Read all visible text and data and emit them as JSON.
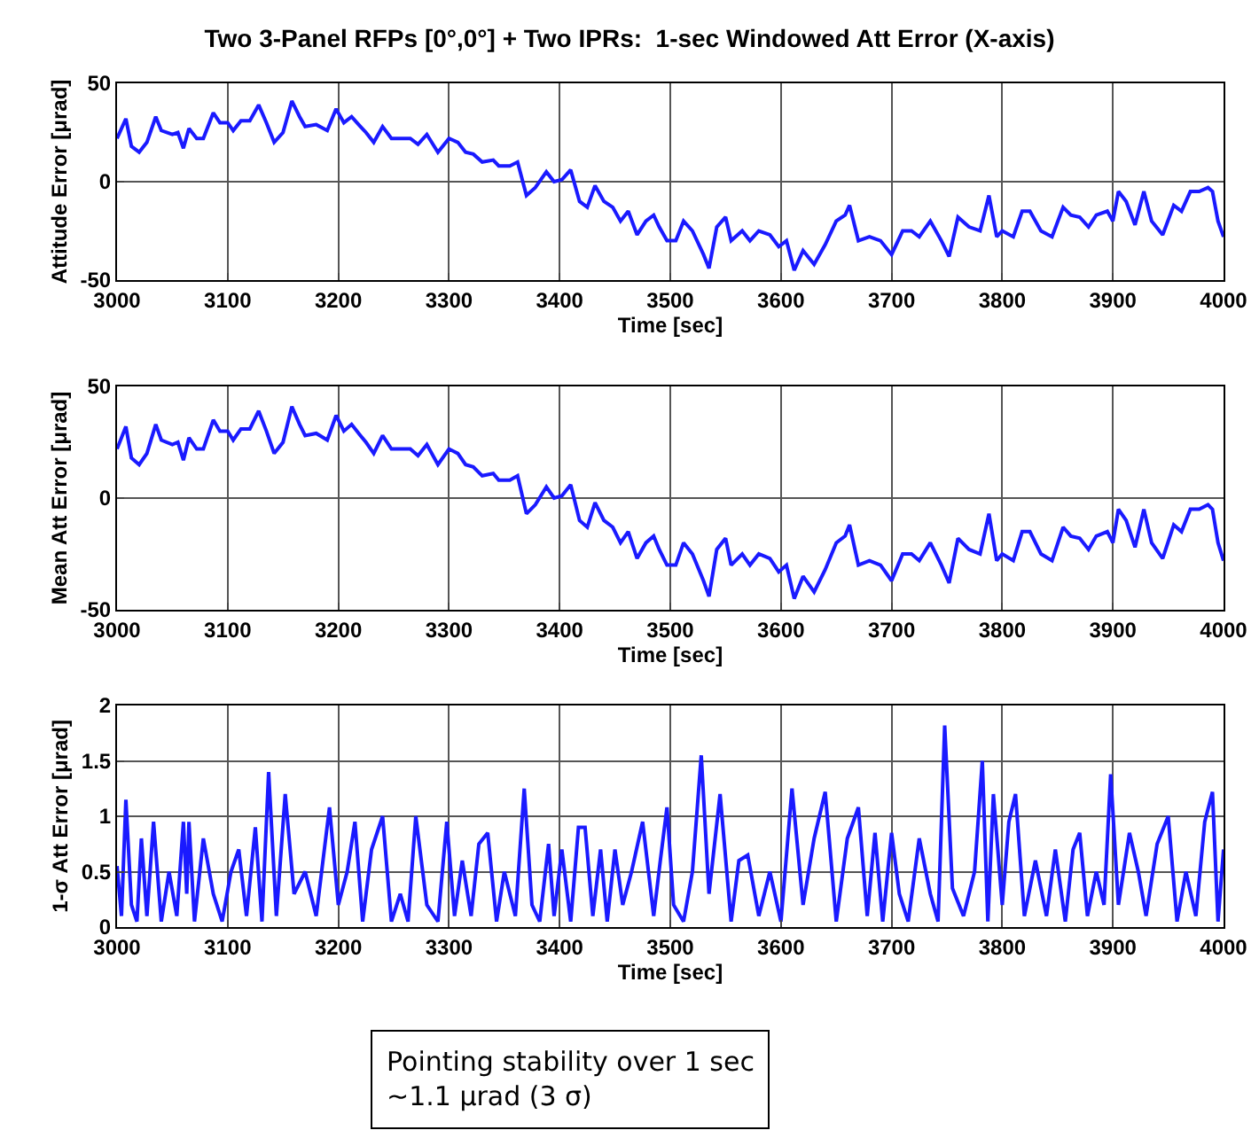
{
  "chart_data": [
    {
      "type": "line",
      "title": "Two 3-Panel RFPs [0°,0°] + Two IPRs:  1-sec Windowed Att Error (X-axis)",
      "xlabel": "Time [sec]",
      "ylabel": "Attitude Error [μrad]",
      "xlim": [
        3000,
        4000
      ],
      "ylim": [
        -50,
        50
      ],
      "xticks": [
        3000,
        3100,
        3200,
        3300,
        3400,
        3500,
        3600,
        3700,
        3800,
        3900,
        4000
      ],
      "yticks": [
        -50,
        0,
        50
      ],
      "grid": true,
      "x": [
        3000,
        3008,
        3013,
        3020,
        3027,
        3035,
        3040,
        3050,
        3055,
        3060,
        3065,
        3072,
        3078,
        3087,
        3093,
        3100,
        3105,
        3112,
        3120,
        3128,
        3135,
        3142,
        3150,
        3158,
        3165,
        3170,
        3180,
        3190,
        3198,
        3205,
        3212,
        3220,
        3225,
        3232,
        3240,
        3248,
        3255,
        3265,
        3272,
        3280,
        3290,
        3300,
        3308,
        3315,
        3322,
        3330,
        3340,
        3345,
        3355,
        3362,
        3370,
        3378,
        3388,
        3395,
        3402,
        3410,
        3418,
        3425,
        3432,
        3440,
        3448,
        3455,
        3462,
        3470,
        3478,
        3485,
        3490,
        3497,
        3505,
        3512,
        3520,
        3530,
        3535,
        3542,
        3550,
        3555,
        3565,
        3572,
        3580,
        3590,
        3598,
        3605,
        3612,
        3620,
        3630,
        3640,
        3650,
        3658,
        3662,
        3670,
        3680,
        3690,
        3700,
        3710,
        3718,
        3725,
        3735,
        3745,
        3752,
        3760,
        3770,
        3780,
        3788,
        3795,
        3800,
        3810,
        3818,
        3825,
        3835,
        3845,
        3855,
        3862,
        3870,
        3878,
        3885,
        3895,
        3900,
        3905,
        3912,
        3920,
        3928,
        3935,
        3945,
        3955,
        3962,
        3970,
        3978,
        3986,
        3990,
        3995,
        4000
      ],
      "series": [
        {
          "color": "#1a1aff",
          "values": [
            22,
            32,
            18,
            15,
            20,
            33,
            26,
            24,
            25,
            17,
            27,
            22,
            22,
            35,
            30,
            30,
            26,
            31,
            31,
            39,
            30,
            20,
            25,
            41,
            33,
            28,
            29,
            26,
            37,
            30,
            33,
            28,
            25,
            20,
            28,
            22,
            22,
            22,
            19,
            24,
            15,
            22,
            20,
            15,
            14,
            10,
            11,
            8,
            8,
            10,
            -7,
            -3,
            5,
            0,
            1,
            6,
            -10,
            -13,
            -2,
            -10,
            -13,
            -20,
            -15,
            -27,
            -20,
            -17,
            -23,
            -30,
            -30,
            -20,
            -25,
            -37,
            -44,
            -23,
            -18,
            -30,
            -25,
            -30,
            -25,
            -27,
            -33,
            -30,
            -45,
            -35,
            -42,
            -32,
            -20,
            -17,
            -12,
            -30,
            -28,
            -30,
            -37,
            -25,
            -25,
            -28,
            -20,
            -30,
            -38,
            -18,
            -23,
            -25,
            -7,
            -28,
            -25,
            -28,
            -15,
            -15,
            -25,
            -28,
            -13,
            -17,
            -18,
            -23,
            -17,
            -15,
            -20,
            -5,
            -10,
            -22,
            -5,
            -20,
            -27,
            -12,
            -15,
            -5,
            -5,
            -3,
            -5,
            -20,
            -28
          ]
        }
      ]
    },
    {
      "type": "line",
      "xlabel": "Time [sec]",
      "ylabel": "Mean Att Error [μrad]",
      "xlim": [
        3000,
        4000
      ],
      "ylim": [
        -50,
        50
      ],
      "xticks": [
        3000,
        3100,
        3200,
        3300,
        3400,
        3500,
        3600,
        3700,
        3800,
        3900,
        4000
      ],
      "yticks": [
        -50,
        0,
        50
      ],
      "grid": true,
      "x": [
        3000,
        3008,
        3013,
        3020,
        3027,
        3035,
        3040,
        3050,
        3055,
        3060,
        3065,
        3072,
        3078,
        3087,
        3093,
        3100,
        3105,
        3112,
        3120,
        3128,
        3135,
        3142,
        3150,
        3158,
        3165,
        3170,
        3180,
        3190,
        3198,
        3205,
        3212,
        3220,
        3225,
        3232,
        3240,
        3248,
        3255,
        3265,
        3272,
        3280,
        3290,
        3300,
        3308,
        3315,
        3322,
        3330,
        3340,
        3345,
        3355,
        3362,
        3370,
        3378,
        3388,
        3395,
        3402,
        3410,
        3418,
        3425,
        3432,
        3440,
        3448,
        3455,
        3462,
        3470,
        3478,
        3485,
        3490,
        3497,
        3505,
        3512,
        3520,
        3530,
        3535,
        3542,
        3550,
        3555,
        3565,
        3572,
        3580,
        3590,
        3598,
        3605,
        3612,
        3620,
        3630,
        3640,
        3650,
        3658,
        3662,
        3670,
        3680,
        3690,
        3700,
        3710,
        3718,
        3725,
        3735,
        3745,
        3752,
        3760,
        3770,
        3780,
        3788,
        3795,
        3800,
        3810,
        3818,
        3825,
        3835,
        3845,
        3855,
        3862,
        3870,
        3878,
        3885,
        3895,
        3900,
        3905,
        3912,
        3920,
        3928,
        3935,
        3945,
        3955,
        3962,
        3970,
        3978,
        3986,
        3990,
        3995,
        4000
      ],
      "series": [
        {
          "color": "#1a1aff",
          "values": [
            22,
            32,
            18,
            15,
            20,
            33,
            26,
            24,
            25,
            17,
            27,
            22,
            22,
            35,
            30,
            30,
            26,
            31,
            31,
            39,
            30,
            20,
            25,
            41,
            33,
            28,
            29,
            26,
            37,
            30,
            33,
            28,
            25,
            20,
            28,
            22,
            22,
            22,
            19,
            24,
            15,
            22,
            20,
            15,
            14,
            10,
            11,
            8,
            8,
            10,
            -7,
            -3,
            5,
            0,
            1,
            6,
            -10,
            -13,
            -2,
            -10,
            -13,
            -20,
            -15,
            -27,
            -20,
            -17,
            -23,
            -30,
            -30,
            -20,
            -25,
            -37,
            -44,
            -23,
            -18,
            -30,
            -25,
            -30,
            -25,
            -27,
            -33,
            -30,
            -45,
            -35,
            -42,
            -32,
            -20,
            -17,
            -12,
            -30,
            -28,
            -30,
            -37,
            -25,
            -25,
            -28,
            -20,
            -30,
            -38,
            -18,
            -23,
            -25,
            -7,
            -28,
            -25,
            -28,
            -15,
            -15,
            -25,
            -28,
            -13,
            -17,
            -18,
            -23,
            -17,
            -15,
            -20,
            -5,
            -10,
            -22,
            -5,
            -20,
            -27,
            -12,
            -15,
            -5,
            -5,
            -3,
            -5,
            -20,
            -28
          ]
        }
      ]
    },
    {
      "type": "line",
      "xlabel": "Time [sec]",
      "ylabel": "1-σ Att Error [μrad]",
      "xlim": [
        3000,
        4000
      ],
      "ylim": [
        0,
        2
      ],
      "xticks": [
        3000,
        3100,
        3200,
        3300,
        3400,
        3500,
        3600,
        3700,
        3800,
        3900,
        4000
      ],
      "yticks": [
        0,
        0.5,
        1,
        1.5,
        2
      ],
      "grid": true,
      "annotations": [
        "Pointing stability over 1 sec\n~1.1 μrad (3 σ)"
      ],
      "x": [
        3000,
        3004,
        3008,
        3013,
        3018,
        3022,
        3027,
        3033,
        3040,
        3047,
        3054,
        3060,
        3063,
        3065,
        3070,
        3078,
        3087,
        3095,
        3103,
        3110,
        3117,
        3125,
        3131,
        3137,
        3144,
        3152,
        3160,
        3170,
        3180,
        3192,
        3200,
        3208,
        3215,
        3222,
        3230,
        3240,
        3248,
        3256,
        3263,
        3270,
        3280,
        3290,
        3298,
        3305,
        3312,
        3320,
        3327,
        3335,
        3343,
        3350,
        3360,
        3368,
        3375,
        3382,
        3390,
        3395,
        3402,
        3410,
        3417,
        3423,
        3430,
        3437,
        3443,
        3450,
        3457,
        3465,
        3475,
        3485,
        3491,
        3497,
        3503,
        3512,
        3520,
        3528,
        3535,
        3545,
        3555,
        3562,
        3570,
        3580,
        3590,
        3600,
        3610,
        3620,
        3630,
        3640,
        3650,
        3660,
        3670,
        3678,
        3685,
        3692,
        3700,
        3707,
        3715,
        3725,
        3735,
        3742,
        3748,
        3755,
        3765,
        3775,
        3782,
        3787,
        3792,
        3800,
        3806,
        3812,
        3820,
        3830,
        3840,
        3848,
        3857,
        3864,
        3870,
        3877,
        3885,
        3892,
        3898,
        3905,
        3915,
        3923,
        3930,
        3940,
        3950,
        3958,
        3966,
        3975,
        3983,
        3990,
        3995,
        4000
      ],
      "series": [
        {
          "color": "#1a1aff",
          "values": [
            0.55,
            0.1,
            1.15,
            0.2,
            0.05,
            0.8,
            0.1,
            0.95,
            0.05,
            0.5,
            0.1,
            0.95,
            0.3,
            0.95,
            0.05,
            0.8,
            0.3,
            0.05,
            0.5,
            0.7,
            0.1,
            0.9,
            0.05,
            1.4,
            0.1,
            1.2,
            0.3,
            0.5,
            0.1,
            1.08,
            0.2,
            0.5,
            0.95,
            0.05,
            0.7,
            1.0,
            0.05,
            0.3,
            0.05,
            1.0,
            0.2,
            0.05,
            0.95,
            0.1,
            0.6,
            0.1,
            0.75,
            0.85,
            0.05,
            0.5,
            0.1,
            1.25,
            0.2,
            0.05,
            0.75,
            0.1,
            0.7,
            0.05,
            0.9,
            0.9,
            0.1,
            0.7,
            0.05,
            0.7,
            0.2,
            0.5,
            0.95,
            0.1,
            0.6,
            1.08,
            0.2,
            0.05,
            0.5,
            1.55,
            0.3,
            1.2,
            0.05,
            0.6,
            0.65,
            0.1,
            0.5,
            0.05,
            1.25,
            0.2,
            0.8,
            1.22,
            0.05,
            0.8,
            1.08,
            0.1,
            0.85,
            0.05,
            0.85,
            0.3,
            0.05,
            0.8,
            0.3,
            0.05,
            1.82,
            0.35,
            0.1,
            0.5,
            1.5,
            0.05,
            1.2,
            0.2,
            0.95,
            1.2,
            0.1,
            0.6,
            0.1,
            0.7,
            0.05,
            0.7,
            0.85,
            0.1,
            0.5,
            0.2,
            1.38,
            0.2,
            0.85,
            0.5,
            0.1,
            0.75,
            1.0,
            0.05,
            0.5,
            0.1,
            0.95,
            1.22,
            0.05,
            0.7
          ]
        }
      ]
    }
  ]
}
